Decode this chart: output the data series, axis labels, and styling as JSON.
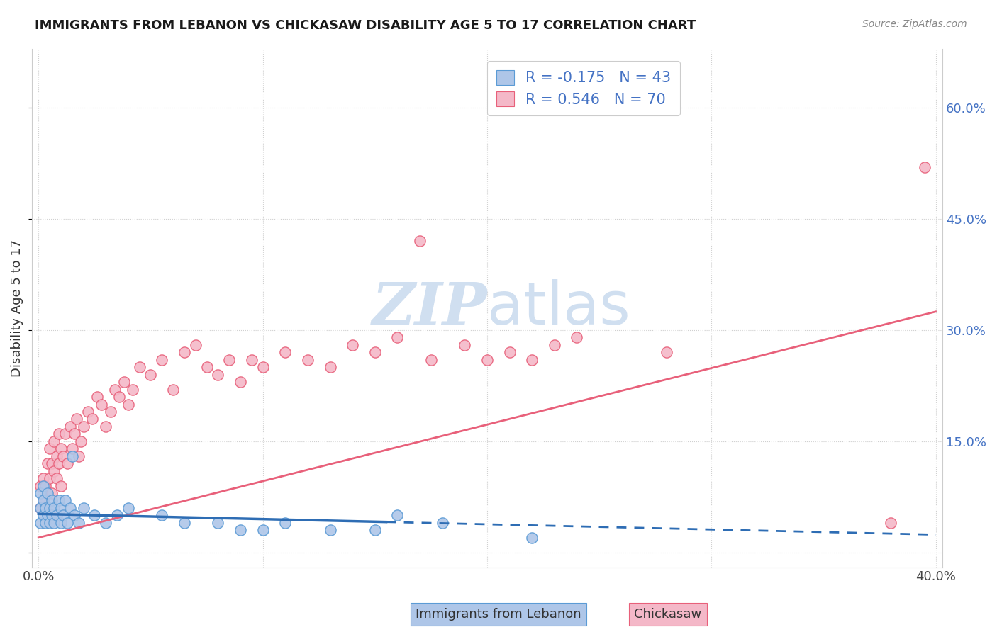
{
  "title": "IMMIGRANTS FROM LEBANON VS CHICKASAW DISABILITY AGE 5 TO 17 CORRELATION CHART",
  "source": "Source: ZipAtlas.com",
  "ylabel": "Disability Age 5 to 17",
  "xlim": [
    -0.003,
    0.403
  ],
  "ylim": [
    -0.02,
    0.68
  ],
  "xticks": [
    0.0,
    0.1,
    0.2,
    0.3,
    0.4
  ],
  "xticklabels": [
    "0.0%",
    "",
    "",
    "",
    "40.0%"
  ],
  "yticks": [
    0.0,
    0.15,
    0.3,
    0.45,
    0.6
  ],
  "ytick_labels_right": [
    "",
    "15.0%",
    "30.0%",
    "45.0%",
    "60.0%"
  ],
  "blue_color": "#aec6e8",
  "blue_edge_color": "#5b9bd5",
  "pink_color": "#f4b8c8",
  "pink_edge_color": "#e8607a",
  "blue_line_color": "#2e6db4",
  "pink_line_color": "#e8607a",
  "background_color": "#ffffff",
  "grid_color": "#d0d0d0",
  "watermark_color": "#d0dff0",
  "right_tick_color": "#4472c4",
  "title_color": "#1a1a1a",
  "source_color": "#888888",
  "ylabel_color": "#333333",
  "blue_line_solid_xend": 0.155,
  "blue_line_x0": 0.0,
  "blue_line_y0": 0.052,
  "blue_line_x1": 0.4,
  "blue_line_y1": 0.024,
  "pink_line_x0": 0.0,
  "pink_line_y0": 0.02,
  "pink_line_x1": 0.4,
  "pink_line_y1": 0.325,
  "blue_scatter_x": [
    0.001,
    0.001,
    0.001,
    0.002,
    0.002,
    0.002,
    0.003,
    0.003,
    0.004,
    0.004,
    0.005,
    0.005,
    0.006,
    0.006,
    0.007,
    0.007,
    0.008,
    0.009,
    0.01,
    0.01,
    0.011,
    0.012,
    0.013,
    0.014,
    0.015,
    0.016,
    0.018,
    0.02,
    0.025,
    0.03,
    0.035,
    0.04,
    0.055,
    0.065,
    0.08,
    0.09,
    0.1,
    0.11,
    0.13,
    0.15,
    0.16,
    0.18,
    0.22
  ],
  "blue_scatter_y": [
    0.04,
    0.06,
    0.08,
    0.05,
    0.07,
    0.09,
    0.04,
    0.06,
    0.05,
    0.08,
    0.06,
    0.04,
    0.07,
    0.05,
    0.06,
    0.04,
    0.05,
    0.07,
    0.06,
    0.04,
    0.05,
    0.07,
    0.04,
    0.06,
    0.13,
    0.05,
    0.04,
    0.06,
    0.05,
    0.04,
    0.05,
    0.06,
    0.05,
    0.04,
    0.04,
    0.03,
    0.03,
    0.04,
    0.03,
    0.03,
    0.05,
    0.04,
    0.02
  ],
  "pink_scatter_x": [
    0.001,
    0.001,
    0.002,
    0.002,
    0.003,
    0.003,
    0.004,
    0.004,
    0.005,
    0.005,
    0.006,
    0.006,
    0.007,
    0.007,
    0.008,
    0.008,
    0.009,
    0.009,
    0.01,
    0.01,
    0.011,
    0.012,
    0.013,
    0.014,
    0.015,
    0.016,
    0.017,
    0.018,
    0.019,
    0.02,
    0.022,
    0.024,
    0.026,
    0.028,
    0.03,
    0.032,
    0.034,
    0.036,
    0.038,
    0.04,
    0.042,
    0.045,
    0.05,
    0.055,
    0.06,
    0.065,
    0.07,
    0.075,
    0.08,
    0.085,
    0.09,
    0.095,
    0.1,
    0.11,
    0.12,
    0.13,
    0.14,
    0.15,
    0.16,
    0.17,
    0.175,
    0.19,
    0.2,
    0.21,
    0.22,
    0.23,
    0.24,
    0.28,
    0.38,
    0.395
  ],
  "pink_scatter_y": [
    0.06,
    0.09,
    0.07,
    0.1,
    0.06,
    0.09,
    0.08,
    0.12,
    0.1,
    0.14,
    0.08,
    0.12,
    0.11,
    0.15,
    0.1,
    0.13,
    0.12,
    0.16,
    0.09,
    0.14,
    0.13,
    0.16,
    0.12,
    0.17,
    0.14,
    0.16,
    0.18,
    0.13,
    0.15,
    0.17,
    0.19,
    0.18,
    0.21,
    0.2,
    0.17,
    0.19,
    0.22,
    0.21,
    0.23,
    0.2,
    0.22,
    0.25,
    0.24,
    0.26,
    0.22,
    0.27,
    0.28,
    0.25,
    0.24,
    0.26,
    0.23,
    0.26,
    0.25,
    0.27,
    0.26,
    0.25,
    0.28,
    0.27,
    0.29,
    0.42,
    0.26,
    0.28,
    0.26,
    0.27,
    0.26,
    0.28,
    0.29,
    0.27,
    0.04,
    0.52
  ],
  "legend_label1": "R = -0.175   N = 43",
  "legend_label2": "R = 0.546   N = 70",
  "bottom_legend1": "Immigrants from Lebanon",
  "bottom_legend2": "Chickasaw"
}
